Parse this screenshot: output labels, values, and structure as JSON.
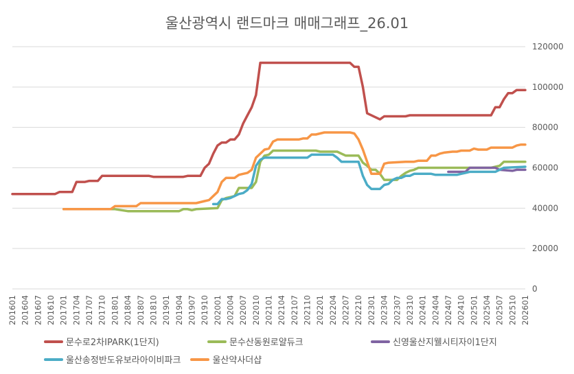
{
  "chart_data": {
    "type": "line",
    "title": "울산광역시 랜드마크 매매그래프_26.01",
    "xlabel": "",
    "ylabel": "",
    "ylim": [
      0,
      120000
    ],
    "yticks": [
      "0",
      "20000",
      "40000",
      "60000",
      "80000",
      "100000",
      "120000"
    ],
    "y_axis_side": "right",
    "grid": true,
    "legend_position": "bottom",
    "x_start": "201601",
    "x_end": "202601",
    "x_tick_labels": [
      "201601",
      "201604",
      "201607",
      "201610",
      "201701",
      "201704",
      "201707",
      "201710",
      "201801",
      "201804",
      "201807",
      "201810",
      "201901",
      "201904",
      "201907",
      "201910",
      "202001",
      "202004",
      "202007",
      "202010",
      "202101",
      "202104",
      "202107",
      "202110",
      "202201",
      "202204",
      "202207",
      "202210",
      "202301",
      "202304",
      "202307",
      "202310",
      "202401",
      "202404",
      "202407",
      "202410",
      "202501",
      "202504",
      "202507",
      "202510",
      "202601"
    ],
    "series": [
      {
        "name": "문수로2차IPARK(1단지)",
        "color": "#C0504D",
        "points": [
          [
            "201601",
            47000
          ],
          [
            "201611",
            47000
          ],
          [
            "201612",
            48000
          ],
          [
            "201703",
            48000
          ],
          [
            "201704",
            53000
          ],
          [
            "201706",
            53000
          ],
          [
            "201707",
            53500
          ],
          [
            "201709",
            53500
          ],
          [
            "201710",
            56000
          ],
          [
            "201809",
            56000
          ],
          [
            "201810",
            55500
          ],
          [
            "201905",
            55500
          ],
          [
            "201906",
            56000
          ],
          [
            "201909",
            56000
          ],
          [
            "201910",
            60000
          ],
          [
            "201911",
            62000
          ],
          [
            "201912",
            67000
          ],
          [
            "202001",
            71000
          ],
          [
            "202002",
            72500
          ],
          [
            "202003",
            72500
          ],
          [
            "202004",
            74000
          ],
          [
            "202005",
            74000
          ],
          [
            "202006",
            76500
          ],
          [
            "202007",
            82000
          ],
          [
            "202008",
            86000
          ],
          [
            "202009",
            90000
          ],
          [
            "202010",
            96000
          ],
          [
            "202011",
            112000
          ],
          [
            "202208",
            112000
          ],
          [
            "202209",
            110000
          ],
          [
            "202210",
            110000
          ],
          [
            "202211",
            100000
          ],
          [
            "202212",
            87000
          ],
          [
            "202303",
            84000
          ],
          [
            "202304",
            85500
          ],
          [
            "202309",
            85500
          ],
          [
            "202310",
            86000
          ],
          [
            "202505",
            86000
          ],
          [
            "202506",
            90000
          ],
          [
            "202507",
            90000
          ],
          [
            "202508",
            94000
          ],
          [
            "202509",
            97000
          ],
          [
            "202510",
            97000
          ],
          [
            "202511",
            98500
          ],
          [
            "202601",
            98500
          ]
        ]
      },
      {
        "name": "문수산동원로얄듀크",
        "color": "#9BBB59",
        "points": [
          [
            "201701",
            39500
          ],
          [
            "201801",
            39500
          ],
          [
            "201804",
            38500
          ],
          [
            "201904",
            38500
          ],
          [
            "201905",
            39500
          ],
          [
            "201906",
            39500
          ],
          [
            "201907",
            39000
          ],
          [
            "201908",
            39500
          ],
          [
            "202001",
            40000
          ],
          [
            "202002",
            44000
          ],
          [
            "202003",
            45000
          ],
          [
            "202004",
            45500
          ],
          [
            "202005",
            46000
          ],
          [
            "202006",
            50000
          ],
          [
            "202009",
            50000
          ],
          [
            "202010",
            53000
          ],
          [
            "202011",
            63000
          ],
          [
            "202012",
            66000
          ],
          [
            "202101",
            66500
          ],
          [
            "202102",
            68500
          ],
          [
            "202112",
            68500
          ],
          [
            "202201",
            68000
          ],
          [
            "202205",
            68000
          ],
          [
            "202206",
            67000
          ],
          [
            "202207",
            66000
          ],
          [
            "202210",
            66000
          ],
          [
            "202211",
            62500
          ],
          [
            "202212",
            61000
          ],
          [
            "202301",
            59000
          ],
          [
            "202302",
            59000
          ],
          [
            "202303",
            57000
          ],
          [
            "202304",
            54000
          ],
          [
            "202307",
            54000
          ],
          [
            "202308",
            56000
          ],
          [
            "202309",
            57500
          ],
          [
            "202310",
            58500
          ],
          [
            "202311",
            59000
          ],
          [
            "202312",
            60000
          ],
          [
            "202505",
            60000
          ],
          [
            "202507",
            61000
          ],
          [
            "202508",
            63000
          ],
          [
            "202601",
            63000
          ]
        ]
      },
      {
        "name": "신영울산지웰시티자이1단지",
        "color": "#8064A2",
        "points": [
          [
            "202407",
            58000
          ],
          [
            "202411",
            58000
          ],
          [
            "202412",
            60000
          ],
          [
            "202506",
            60000
          ],
          [
            "202507",
            59000
          ],
          [
            "202510",
            58500
          ],
          [
            "202511",
            59000
          ],
          [
            "202601",
            59000
          ]
        ]
      },
      {
        "name": "울산송정반도유보라아이비파크",
        "color": "#4BACC6",
        "points": [
          [
            "201912",
            42000
          ],
          [
            "202001",
            42000
          ],
          [
            "202002",
            44500
          ],
          [
            "202003",
            44500
          ],
          [
            "202004",
            45000
          ],
          [
            "202005",
            46000
          ],
          [
            "202006",
            47000
          ],
          [
            "202007",
            47500
          ],
          [
            "202008",
            49000
          ],
          [
            "202009",
            52000
          ],
          [
            "202010",
            61000
          ],
          [
            "202011",
            64000
          ],
          [
            "202012",
            65000
          ],
          [
            "202110",
            65000
          ],
          [
            "202111",
            66500
          ],
          [
            "202204",
            66500
          ],
          [
            "202205",
            65000
          ],
          [
            "202206",
            63000
          ],
          [
            "202210",
            63000
          ],
          [
            "202211",
            56000
          ],
          [
            "202212",
            51500
          ],
          [
            "202301",
            49500
          ],
          [
            "202303",
            49500
          ],
          [
            "202304",
            51500
          ],
          [
            "202305",
            52000
          ],
          [
            "202306",
            54000
          ],
          [
            "202307",
            55000
          ],
          [
            "202308",
            55000
          ],
          [
            "202309",
            56000
          ],
          [
            "202310",
            56000
          ],
          [
            "202311",
            57000
          ],
          [
            "202403",
            57000
          ],
          [
            "202404",
            56500
          ],
          [
            "202409",
            56500
          ],
          [
            "202410",
            57000
          ],
          [
            "202411",
            57500
          ],
          [
            "202412",
            58000
          ],
          [
            "202506",
            58000
          ],
          [
            "202507",
            59000
          ],
          [
            "202508",
            60000
          ],
          [
            "202601",
            60500
          ]
        ]
      },
      {
        "name": "울산약사더샵",
        "color": "#F79646",
        "points": [
          [
            "201701",
            39500
          ],
          [
            "201712",
            39500
          ],
          [
            "201801",
            41000
          ],
          [
            "201806",
            41000
          ],
          [
            "201807",
            42500
          ],
          [
            "201908",
            42500
          ],
          [
            "201909",
            43000
          ],
          [
            "201910",
            43500
          ],
          [
            "201911",
            44000
          ],
          [
            "201912",
            46000
          ],
          [
            "202001",
            48000
          ],
          [
            "202002",
            53000
          ],
          [
            "202003",
            55000
          ],
          [
            "202005",
            55000
          ],
          [
            "202006",
            56500
          ],
          [
            "202007",
            57000
          ],
          [
            "202008",
            57500
          ],
          [
            "202009",
            59000
          ],
          [
            "202010",
            65000
          ],
          [
            "202011",
            67000
          ],
          [
            "202012",
            69000
          ],
          [
            "202101",
            69500
          ],
          [
            "202102",
            73000
          ],
          [
            "202103",
            74000
          ],
          [
            "202108",
            74000
          ],
          [
            "202109",
            74500
          ],
          [
            "202110",
            74500
          ],
          [
            "202111",
            76500
          ],
          [
            "202112",
            76500
          ],
          [
            "202201",
            77000
          ],
          [
            "202202",
            77500
          ],
          [
            "202208",
            77500
          ],
          [
            "202209",
            77000
          ],
          [
            "202210",
            74000
          ],
          [
            "202211",
            69000
          ],
          [
            "202212",
            63000
          ],
          [
            "202301",
            57000
          ],
          [
            "202303",
            57000
          ],
          [
            "202304",
            62000
          ],
          [
            "202305",
            62500
          ],
          [
            "202309",
            63000
          ],
          [
            "202311",
            63000
          ],
          [
            "202312",
            63500
          ],
          [
            "202402",
            63500
          ],
          [
            "202403",
            66000
          ],
          [
            "202404",
            66000
          ],
          [
            "202405",
            67000
          ],
          [
            "202406",
            67500
          ],
          [
            "202408",
            68000
          ],
          [
            "202409",
            68000
          ],
          [
            "202410",
            68500
          ],
          [
            "202412",
            68500
          ],
          [
            "202501",
            69500
          ],
          [
            "202502",
            69000
          ],
          [
            "202504",
            69000
          ],
          [
            "202505",
            70000
          ],
          [
            "202510",
            70000
          ],
          [
            "202511",
            71000
          ],
          [
            "202512",
            71500
          ],
          [
            "202601",
            71500
          ]
        ]
      }
    ]
  }
}
